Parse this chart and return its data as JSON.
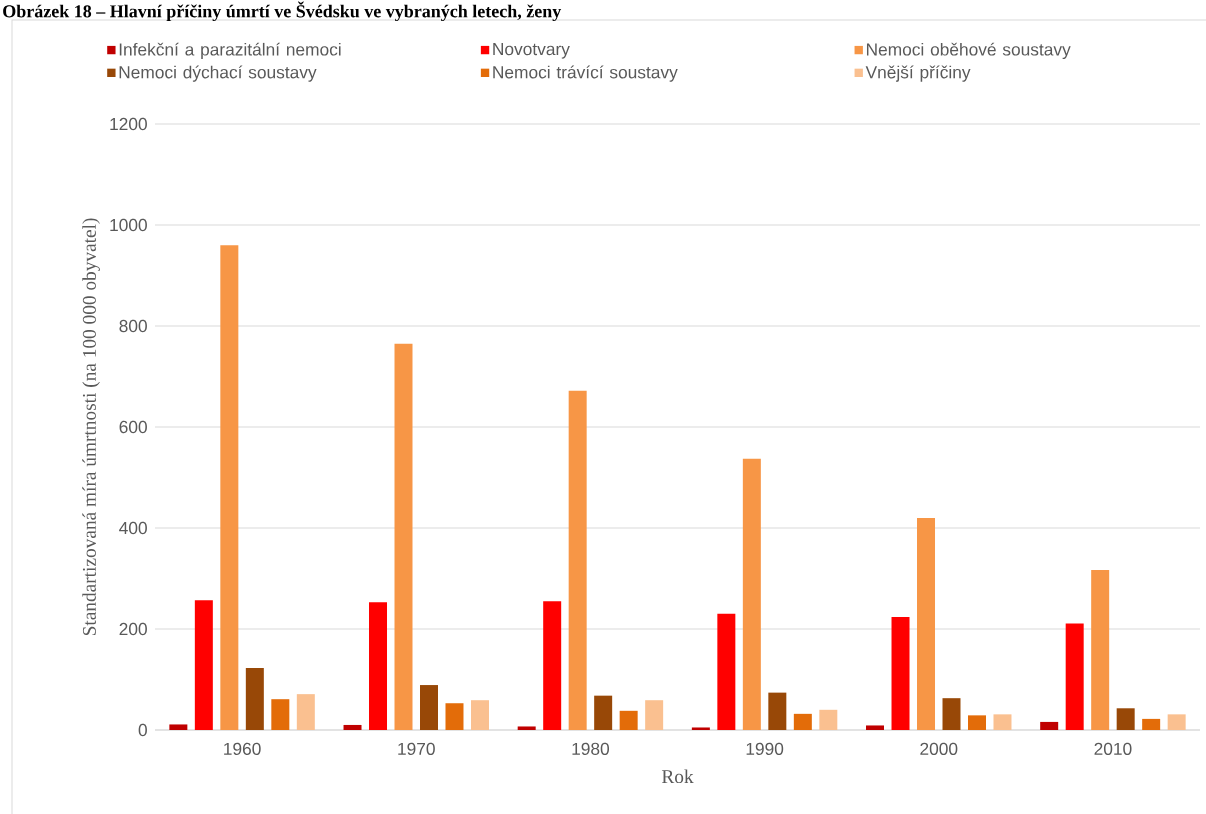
{
  "chart_data": {
    "type": "bar",
    "title": "Obrázek 18 – Hlavní příčiny úmrtí ve Švédsku ve vybraných letech, ženy",
    "xlabel": "Rok",
    "ylabel": "Standartizovaná míra úmrtnosti (na 100 000 obyvatel)",
    "categories": [
      "1960",
      "1970",
      "1980",
      "1990",
      "2000",
      "2010"
    ],
    "series": [
      {
        "name": "Infekční a parazitální nemoci",
        "color": "#c00000",
        "values": [
          11,
          10,
          7,
          5,
          9,
          16
        ]
      },
      {
        "name": "Novotvary",
        "color": "#ff0000",
        "values": [
          257,
          253,
          255,
          230,
          224,
          211
        ]
      },
      {
        "name": "Nemoci oběhové soustavy",
        "color": "#f79646",
        "values": [
          960,
          765,
          672,
          537,
          420,
          317
        ]
      },
      {
        "name": "Nemoci dýchací soustavy",
        "color": "#984807",
        "values": [
          123,
          89,
          68,
          74,
          63,
          43
        ]
      },
      {
        "name": "Nemoci trávící soustavy",
        "color": "#e36c09",
        "values": [
          61,
          53,
          38,
          32,
          29,
          22
        ]
      },
      {
        "name": "Vnější příčiny",
        "color": "#fac090",
        "values": [
          71,
          59,
          59,
          40,
          31,
          31
        ]
      }
    ],
    "ylim": [
      0,
      1200
    ],
    "yticks": [
      0,
      200,
      400,
      600,
      800,
      1000,
      1200
    ],
    "grid": "y",
    "legend": "top"
  }
}
